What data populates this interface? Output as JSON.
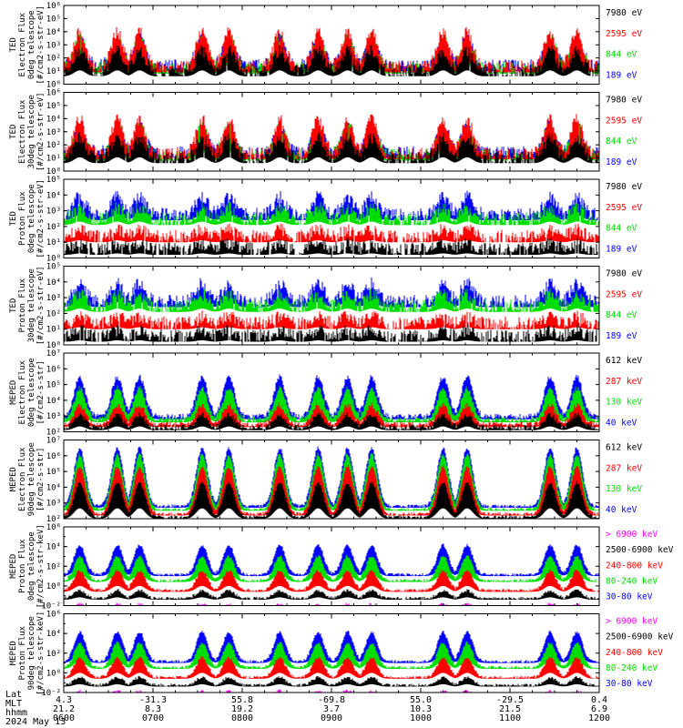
{
  "chart_data": {
    "type": "line",
    "panels": [
      {
        "ylabel": [
          "TED",
          "Electron Flux",
          "0deg telescope",
          "[#/cm2-s-str-eV]"
        ],
        "ymin_exp": 0,
        "ymax_exp": 6,
        "tick_labels": [
          "10⁰",
          "10¹",
          "10²",
          "10³",
          "10⁴",
          "10⁵",
          "10⁶"
        ],
        "tick_exps": [
          0,
          1,
          2,
          3,
          4,
          5,
          6
        ],
        "series": [
          {
            "name": "7980 eV",
            "color": "#000000"
          },
          {
            "name": "2595 eV",
            "color": "#ff0000"
          },
          {
            "name": "844 eV",
            "color": "#00dd00"
          },
          {
            "name": "189 eV",
            "color": "#0000ff"
          }
        ],
        "kind": "ted_e",
        "seed": 11
      },
      {
        "ylabel": [
          "TED",
          "Electron Flux",
          "30deg telescope",
          "[#/cm2-s-str-eV]"
        ],
        "ymin_exp": 0,
        "ymax_exp": 6,
        "tick_labels": [
          "10⁰",
          "10¹",
          "10²",
          "10³",
          "10⁴",
          "10⁵",
          "10⁶"
        ],
        "tick_exps": [
          0,
          1,
          2,
          3,
          4,
          5,
          6
        ],
        "series": [
          {
            "name": "7980 eV",
            "color": "#000000"
          },
          {
            "name": "2595 eV",
            "color": "#ff0000"
          },
          {
            "name": "844 eV",
            "color": "#00dd00"
          },
          {
            "name": "189 eV",
            "color": "#0000ff"
          }
        ],
        "kind": "ted_e",
        "seed": 23
      },
      {
        "ylabel": [
          "TED",
          "Proton Flux",
          "0deg telescope",
          "[#/cm2-s-str-eV]"
        ],
        "ymin_exp": 0,
        "ymax_exp": 5,
        "tick_labels": [
          "10⁰",
          "10¹",
          "10²",
          "10³",
          "10⁴",
          "10⁵"
        ],
        "tick_exps": [
          0,
          1,
          2,
          3,
          4,
          5
        ],
        "series": [
          {
            "name": "7980 eV",
            "color": "#000000"
          },
          {
            "name": "2595 eV",
            "color": "#ff0000"
          },
          {
            "name": "844 eV",
            "color": "#00dd00"
          },
          {
            "name": "189 eV",
            "color": "#0000ff"
          }
        ],
        "kind": "ted_p",
        "seed": 37
      },
      {
        "ylabel": [
          "TED",
          "Proton Flux",
          "30deg telescope",
          "[#/cm2-s-str-eV]"
        ],
        "ymin_exp": 0,
        "ymax_exp": 5,
        "tick_labels": [
          "10⁰",
          "10¹",
          "10²",
          "10³",
          "10⁴",
          "10⁵"
        ],
        "tick_exps": [
          0,
          1,
          2,
          3,
          4,
          5
        ],
        "series": [
          {
            "name": "7980 eV",
            "color": "#000000"
          },
          {
            "name": "2595 eV",
            "color": "#ff0000"
          },
          {
            "name": "844 eV",
            "color": "#00dd00"
          },
          {
            "name": "189 eV",
            "color": "#0000ff"
          }
        ],
        "kind": "ted_p",
        "seed": 41
      },
      {
        "ylabel": [
          "MEPED",
          "Electron Flux",
          "0deg telescope",
          "[#/cm2-s-str]"
        ],
        "ymin_exp": 2,
        "ymax_exp": 7,
        "tick_labels": [
          "10²",
          "10³",
          "10⁴",
          "10⁵",
          "10⁶",
          "10⁷"
        ],
        "tick_exps": [
          2,
          3,
          4,
          5,
          6,
          7
        ],
        "series": [
          {
            "name": "612 keV",
            "color": "#000000"
          },
          {
            "name": "287 keV",
            "color": "#ff0000"
          },
          {
            "name": "130 keV",
            "color": "#00dd00"
          },
          {
            "name": "40 keV",
            "color": "#0000ff"
          }
        ],
        "kind": "meped_e0",
        "seed": 53
      },
      {
        "ylabel": [
          "MEPED",
          "Electron Flux",
          "90deg telescope",
          "[#/cm2-s-str]"
        ],
        "ymin_exp": 2,
        "ymax_exp": 7,
        "tick_labels": [
          "10²",
          "10³",
          "10⁴",
          "10⁵",
          "10⁶",
          "10⁷"
        ],
        "tick_exps": [
          2,
          3,
          4,
          5,
          6,
          7
        ],
        "series": [
          {
            "name": "612 keV",
            "color": "#000000"
          },
          {
            "name": "287 keV",
            "color": "#ff0000"
          },
          {
            "name": "130 keV",
            "color": "#00dd00"
          },
          {
            "name": "40 keV",
            "color": "#0000ff"
          }
        ],
        "kind": "meped_e90",
        "seed": 67
      },
      {
        "ylabel": [
          "MEPED",
          "Proton Flux",
          "0deg telescope",
          "[#/cm2-s-str-keV]"
        ],
        "ymin_exp": -2,
        "ymax_exp": 6,
        "tick_labels": [
          "10⁻²",
          "10⁰",
          "10²",
          "10⁴",
          "10⁶"
        ],
        "tick_exps": [
          -2,
          0,
          2,
          4,
          6
        ],
        "series": [
          {
            "name": "> 6900 keV",
            "color": "#ff00ff"
          },
          {
            "name": "2500-6900 keV",
            "color": "#000000"
          },
          {
            "name": "240-800 keV",
            "color": "#ff0000"
          },
          {
            "name": "80-240 keV",
            "color": "#00dd00"
          },
          {
            "name": "30-80 keV",
            "color": "#0000ff"
          }
        ],
        "kind": "meped_p",
        "seed": 79
      },
      {
        "ylabel": [
          "MEPED",
          "Proton Flux",
          "90deg telescope",
          "[#/cm2-s-str-keV]"
        ],
        "ymin_exp": -2,
        "ymax_exp": 6,
        "tick_labels": [
          "10⁻²",
          "10⁰",
          "10²",
          "10⁴",
          "10⁶"
        ],
        "tick_exps": [
          -2,
          0,
          2,
          4,
          6
        ],
        "series": [
          {
            "name": "> 6900 keV",
            "color": "#ff00ff"
          },
          {
            "name": "2500-6900 keV",
            "color": "#000000"
          },
          {
            "name": "240-800 keV",
            "color": "#ff0000"
          },
          {
            "name": "80-240 keV",
            "color": "#00dd00"
          },
          {
            "name": "30-80 keV",
            "color": "#0000ff"
          }
        ],
        "kind": "meped_p",
        "seed": 97
      }
    ],
    "x_ticks": {
      "hhmm": [
        "0600",
        "0700",
        "0800",
        "0900",
        "1000",
        "1100",
        "1200"
      ],
      "lat": [
        "4.3",
        "-31.3",
        "55.8",
        "-69.8",
        "55.0",
        "-29.5",
        "0.4"
      ],
      "mlt": [
        "21.2",
        "8.3",
        "19.2",
        "3.7",
        "10.3",
        "21.5",
        "6.9"
      ]
    },
    "xlim_hours": [
      6,
      12
    ],
    "grid": false,
    "legend": "right of each panel"
  },
  "footer": {
    "lat_label": "Lat",
    "mlt_label": "MLT",
    "hhmm_label": "hhmm",
    "date": "2024 May 13"
  }
}
